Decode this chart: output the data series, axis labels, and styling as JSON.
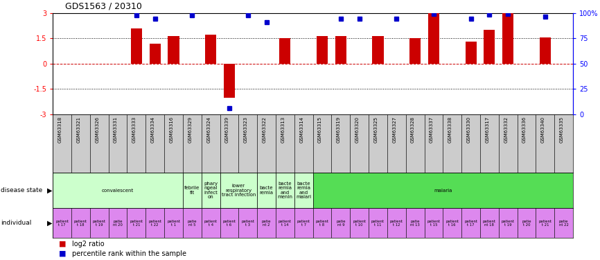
{
  "title": "GDS1563 / 20310",
  "samples": [
    "GSM63318",
    "GSM63321",
    "GSM63326",
    "GSM63331",
    "GSM63333",
    "GSM63334",
    "GSM63316",
    "GSM63329",
    "GSM63324",
    "GSM63339",
    "GSM63323",
    "GSM63322",
    "GSM63313",
    "GSM63314",
    "GSM63315",
    "GSM63319",
    "GSM63320",
    "GSM63325",
    "GSM63327",
    "GSM63328",
    "GSM63337",
    "GSM63338",
    "GSM63330",
    "GSM63317",
    "GSM63332",
    "GSM63336",
    "GSM63340",
    "GSM63335"
  ],
  "log2_ratio": [
    0.0,
    0.0,
    0.0,
    0.0,
    2.1,
    1.2,
    1.65,
    0.0,
    1.7,
    -2.0,
    0.0,
    0.0,
    1.5,
    0.0,
    1.65,
    1.65,
    0.0,
    1.65,
    0.0,
    1.5,
    3.0,
    0.0,
    1.3,
    2.0,
    3.0,
    0.0,
    1.55,
    0.0
  ],
  "percentile_rank": [
    null,
    null,
    null,
    null,
    2.85,
    2.65,
    null,
    2.85,
    null,
    null,
    2.85,
    2.45,
    null,
    null,
    null,
    2.65,
    2.65,
    null,
    2.65,
    null,
    2.95,
    null,
    2.65,
    2.9,
    2.95,
    null,
    2.8,
    null
  ],
  "low_percentile": [
    null,
    null,
    null,
    null,
    null,
    null,
    null,
    null,
    null,
    -2.65,
    null,
    null,
    null,
    null,
    null,
    null,
    null,
    null,
    null,
    null,
    null,
    null,
    null,
    null,
    null,
    null,
    null,
    null
  ],
  "disease_states": [
    {
      "label": "convalescent",
      "start": 0,
      "end": 7,
      "color": "#ccffcc"
    },
    {
      "label": "febrile\nfit",
      "start": 7,
      "end": 8,
      "color": "#ccffcc"
    },
    {
      "label": "phary\nngeal\ninfect\non",
      "start": 8,
      "end": 9,
      "color": "#ccffcc"
    },
    {
      "label": "lower\nrespiratory\ntract infection",
      "start": 9,
      "end": 11,
      "color": "#ccffcc"
    },
    {
      "label": "bacte\nremia",
      "start": 11,
      "end": 12,
      "color": "#ccffcc"
    },
    {
      "label": "bacte\nremia\nand\nmenin",
      "start": 12,
      "end": 13,
      "color": "#ccffcc"
    },
    {
      "label": "bacte\nremia\nand\nmalari",
      "start": 13,
      "end": 14,
      "color": "#ccffcc"
    },
    {
      "label": "malaria",
      "start": 14,
      "end": 28,
      "color": "#55dd55"
    }
  ],
  "individuals": [
    "patient\nt 17",
    "patient\nt 18",
    "patient\nt 19",
    "patie\nnt 20",
    "patient\nt 21",
    "patient\nt 22",
    "patient\nt 1",
    "patie\nnt 5",
    "patient\nt 4",
    "patient\nt 6",
    "patient\nt 3",
    "patie\nnt 2",
    "patient\nt 14",
    "patient\nt 7",
    "patient\nt 8",
    "patie\nnt 9",
    "patient\nt 10",
    "patient\nt 11",
    "patient\nt 12",
    "patie\nnt 13",
    "patient\nt 15",
    "patient\nt 16",
    "patient\nt 17",
    "patient\nnt 18",
    "patient\nt 19",
    "patie\nt 20",
    "patient\nt 21",
    "patie\nnt 22"
  ],
  "bar_color": "#cc0000",
  "dot_color": "#0000cc",
  "yticks_left": [
    -3,
    -1.5,
    0,
    1.5,
    3
  ],
  "yticks_right": [
    0,
    25,
    50,
    75,
    100
  ],
  "yticks_right_labels": [
    "0",
    "25",
    "50",
    "75",
    "100%"
  ],
  "indiv_color": "#dd88ee",
  "sample_box_color": "#cccccc",
  "left_label_color": "#333333"
}
